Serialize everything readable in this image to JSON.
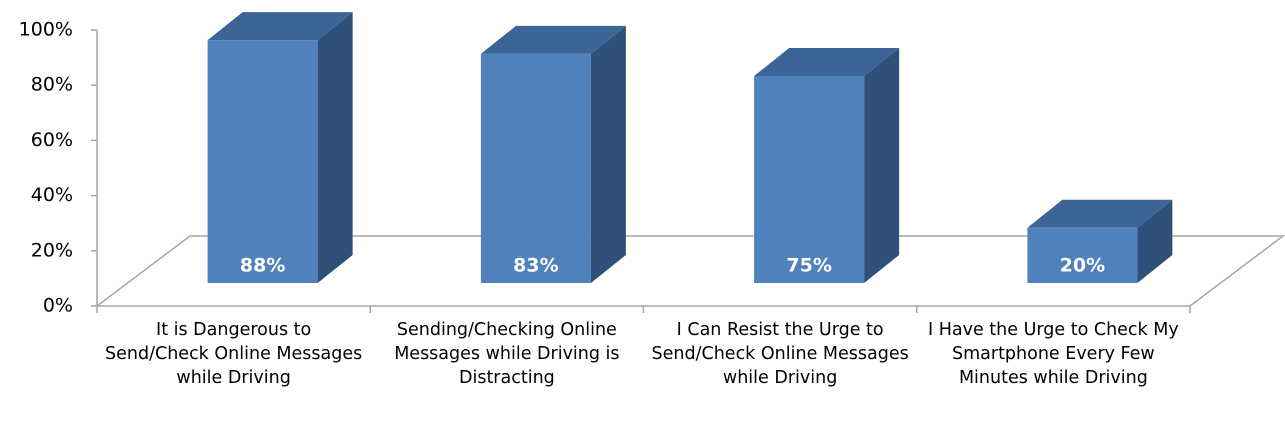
{
  "chart_data": {
    "type": "bar3d",
    "categories": [
      "It is Dangerous to Send/Check Online Messages while Driving",
      "Sending/Checking Online Messages while Driving is Distracting",
      "I Can Resist the Urge to Send/Check Online Messages while Driving",
      "I Have the Urge to Check My Smartphone Every Few Minutes while Driving"
    ],
    "values": [
      88,
      83,
      75,
      20
    ],
    "value_labels": [
      "88%",
      "83%",
      "75%",
      "20%"
    ],
    "color": "#4f81bd",
    "ylim": [
      0,
      100
    ],
    "yticks": [
      {
        "value": 0,
        "label": "0%"
      },
      {
        "value": 20,
        "label": "20%"
      },
      {
        "value": 40,
        "label": "40%"
      },
      {
        "value": 60,
        "label": "60%"
      },
      {
        "value": 80,
        "label": "80%"
      },
      {
        "value": 100,
        "label": "100%"
      }
    ]
  }
}
